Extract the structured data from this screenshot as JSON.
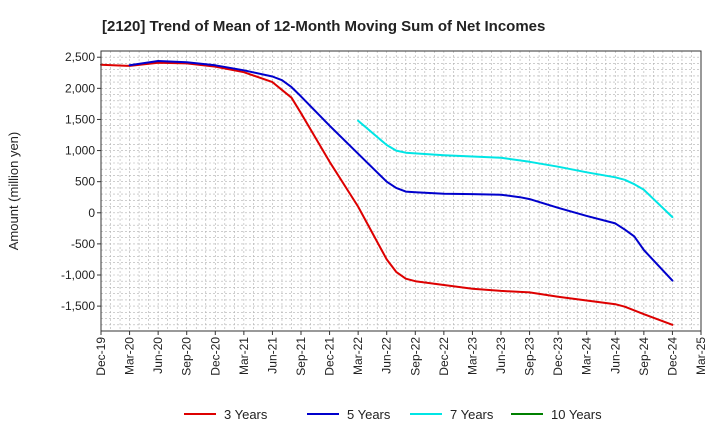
{
  "chart_data": {
    "type": "line",
    "title": "[2120]  Trend of Mean of 12-Month Moving Sum of Net Incomes",
    "xlabel": "",
    "ylabel": "Amount (million yen)",
    "ylim": [
      -1900,
      2600
    ],
    "yticks": [
      2500,
      2000,
      1500,
      1000,
      500,
      0,
      -500,
      -1000,
      -1500
    ],
    "ytick_labels": [
      "2,500",
      "2,000",
      "1,500",
      "1,000",
      "500",
      "0",
      "-500",
      "-1,000",
      "-1,500"
    ],
    "xticks": [
      "Dec-19",
      "Mar-20",
      "Jun-20",
      "Sep-20",
      "Dec-20",
      "Mar-21",
      "Jun-21",
      "Sep-21",
      "Dec-21",
      "Mar-22",
      "Jun-22",
      "Sep-22",
      "Dec-22",
      "Mar-23",
      "Jun-23",
      "Sep-23",
      "Dec-23",
      "Mar-24",
      "Jun-24",
      "Sep-24",
      "Dec-24",
      "Mar-25"
    ],
    "grid": true,
    "legend_position": "bottom",
    "series": [
      {
        "name": "3 Years",
        "color": "#dd0000",
        "points": [
          [
            "Dec-19",
            2380
          ],
          [
            "Mar-20",
            2360
          ],
          [
            "Jun-20",
            2410
          ],
          [
            "Sep-20",
            2400
          ],
          [
            "Dec-20",
            2350
          ],
          [
            "Mar-21",
            2260
          ],
          [
            "Jun-21",
            2100
          ],
          [
            "Aug-21",
            1850
          ],
          [
            "Sep-21",
            1600
          ],
          [
            "Dec-21",
            820
          ],
          [
            "Mar-22",
            100
          ],
          [
            "Jun-22",
            -750
          ],
          [
            "Jul-22",
            -950
          ],
          [
            "Aug-22",
            -1060
          ],
          [
            "Sep-22",
            -1100
          ],
          [
            "Dec-22",
            -1160
          ],
          [
            "Mar-23",
            -1220
          ],
          [
            "Jun-23",
            -1255
          ],
          [
            "Sep-23",
            -1280
          ],
          [
            "Dec-23",
            -1350
          ],
          [
            "Mar-24",
            -1410
          ],
          [
            "Jun-24",
            -1470
          ],
          [
            "Jul-24",
            -1510
          ],
          [
            "Sep-24",
            -1630
          ],
          [
            "Dec-24",
            -1800
          ]
        ]
      },
      {
        "name": "5 Years",
        "color": "#0000cc",
        "points": [
          [
            "Mar-20",
            2370
          ],
          [
            "Jun-20",
            2440
          ],
          [
            "Sep-20",
            2420
          ],
          [
            "Dec-20",
            2370
          ],
          [
            "Mar-21",
            2290
          ],
          [
            "Jun-21",
            2190
          ],
          [
            "Jul-21",
            2130
          ],
          [
            "Aug-21",
            2020
          ],
          [
            "Sep-21",
            1870
          ],
          [
            "Dec-21",
            1400
          ],
          [
            "Mar-22",
            950
          ],
          [
            "Jun-22",
            500
          ],
          [
            "Jul-22",
            400
          ],
          [
            "Aug-22",
            340
          ],
          [
            "Sep-22",
            330
          ],
          [
            "Dec-22",
            305
          ],
          [
            "Mar-23",
            300
          ],
          [
            "Jun-23",
            290
          ],
          [
            "Aug-23",
            250
          ],
          [
            "Sep-23",
            220
          ],
          [
            "Dec-23",
            80
          ],
          [
            "Mar-24",
            -50
          ],
          [
            "Jun-24",
            -170
          ],
          [
            "Jul-24",
            -270
          ],
          [
            "Aug-24",
            -380
          ],
          [
            "Sep-24",
            -600
          ],
          [
            "Dec-24",
            -1090
          ]
        ]
      },
      {
        "name": "7 Years",
        "color": "#00e5e5",
        "points": [
          [
            "Mar-22",
            1480
          ],
          [
            "Jun-22",
            1090
          ],
          [
            "Jul-22",
            1000
          ],
          [
            "Aug-22",
            965
          ],
          [
            "Sep-22",
            955
          ],
          [
            "Dec-22",
            925
          ],
          [
            "Mar-23",
            905
          ],
          [
            "Jun-23",
            885
          ],
          [
            "Sep-23",
            820
          ],
          [
            "Dec-23",
            740
          ],
          [
            "Mar-24",
            650
          ],
          [
            "Jun-24",
            570
          ],
          [
            "Jul-24",
            530
          ],
          [
            "Aug-24",
            460
          ],
          [
            "Sep-24",
            370
          ],
          [
            "Dec-24",
            -70
          ]
        ]
      },
      {
        "name": "10 Years",
        "color": "#008000",
        "points": []
      }
    ]
  }
}
